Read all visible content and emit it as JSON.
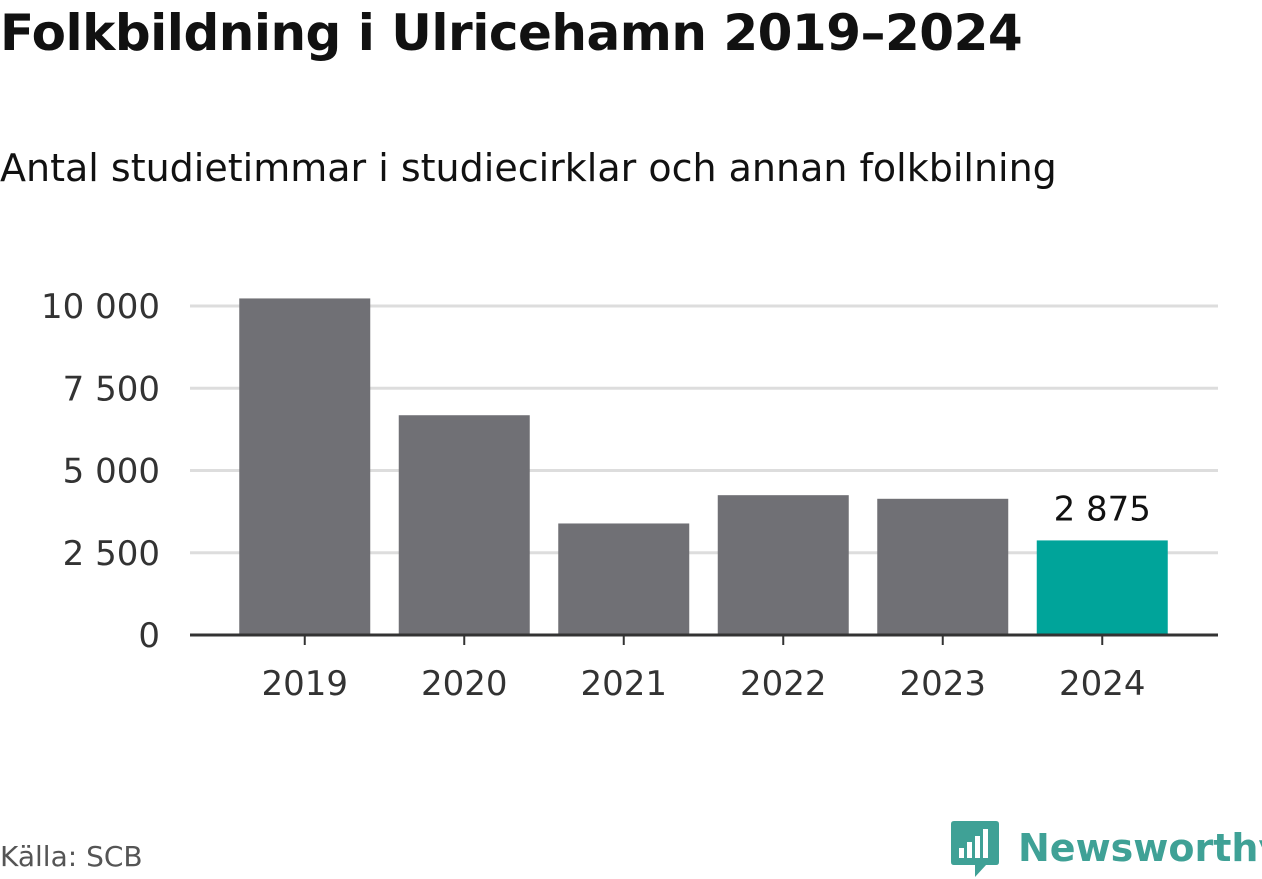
{
  "title": "Folkbildning i Ulricehamn 2019–2024",
  "subtitle": "Antal studietimmar i studiecirklar och annan folkbilning",
  "source": "Källa: SCB",
  "brand": {
    "name": "Newsworthy",
    "icon": "newsworthy-logo-icon",
    "color": "#3fa196"
  },
  "colors": {
    "bar": "#707075",
    "highlight": "#00a49a",
    "grid": "#dddddd",
    "axis": "#333333",
    "tick_text": "#333333"
  },
  "chart_data": {
    "type": "bar",
    "categories": [
      "2019",
      "2020",
      "2021",
      "2022",
      "2023",
      "2024"
    ],
    "values": [
      10230,
      6680,
      3390,
      4250,
      4140,
      2875
    ],
    "highlight_index": 5,
    "data_labels": [
      {
        "index": 5,
        "text": "2 875"
      }
    ],
    "ylim": [
      0,
      10000
    ],
    "yticks": [
      0,
      2500,
      5000,
      7500,
      10000
    ],
    "ytick_labels": [
      "0",
      "2 500",
      "5 000",
      "7 500",
      "10 000"
    ],
    "grid": true,
    "xlabel": "",
    "ylabel": ""
  }
}
